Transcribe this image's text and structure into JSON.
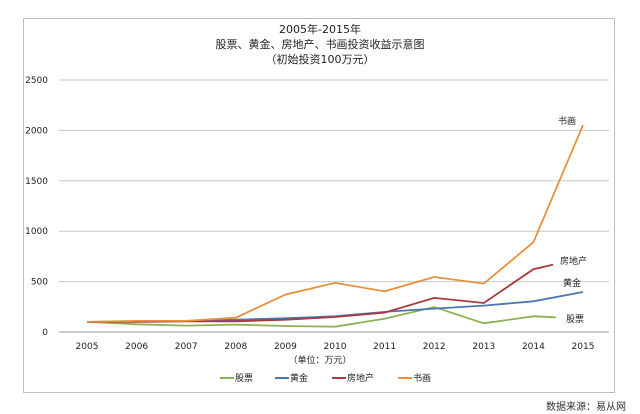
{
  "chart_data": {
    "type": "line",
    "title": "2005年-2015年",
    "subtitle": "股票、黄金、房地产、书画投资收益示意图",
    "subtitle2": "（初始投资100万元）",
    "xlabel": "（单位：万元）",
    "ylabel": "",
    "x_ticks": [
      "2005",
      "2006",
      "2007",
      "2008",
      "2009",
      "2010",
      "2011",
      "2012",
      "2013",
      "2014",
      "2015"
    ],
    "y_ticks": [
      "0",
      "500",
      "1000",
      "1500",
      "2000",
      "2500"
    ],
    "ylim": [
      0,
      2500
    ],
    "xlim": [
      2005,
      2015
    ],
    "grid": true,
    "legend": "bottom",
    "series": [
      {
        "name": "股票",
        "color": "#8db254",
        "x": [
          2005,
          2006,
          2007,
          2008,
          2009,
          2010,
          2011,
          2012,
          2013,
          2014,
          2014.45
        ],
        "values": [
          100,
          76,
          63,
          73,
          60,
          53,
          132,
          248,
          86,
          156,
          146
        ]
      },
      {
        "name": "黄金",
        "color": "#4a78b4",
        "x": [
          2005,
          2006,
          2007,
          2008,
          2009,
          2010,
          2011,
          2012,
          2013,
          2014,
          2015
        ],
        "values": [
          100,
          105,
          110,
          122,
          136,
          156,
          199,
          232,
          262,
          305,
          397
        ]
      },
      {
        "name": "房地产",
        "color": "#a63a3f",
        "x": [
          2005,
          2006,
          2007,
          2008,
          2009,
          2010,
          2011,
          2012,
          2013,
          2014,
          2014.4
        ],
        "values": [
          100,
          100,
          105,
          106,
          122,
          149,
          192,
          338,
          288,
          623,
          669
        ]
      },
      {
        "name": "书画",
        "color": "#e8913c",
        "x": [
          2005,
          2006,
          2007,
          2008,
          2009,
          2010,
          2011,
          2012,
          2013,
          2014,
          2015
        ],
        "values": [
          100,
          110,
          110,
          142,
          371,
          487,
          404,
          546,
          480,
          891,
          2053
        ]
      }
    ],
    "end_labels": [
      "股票",
      "黄金",
      "房地产",
      "书画"
    ]
  },
  "source": "数据来源：易从网"
}
